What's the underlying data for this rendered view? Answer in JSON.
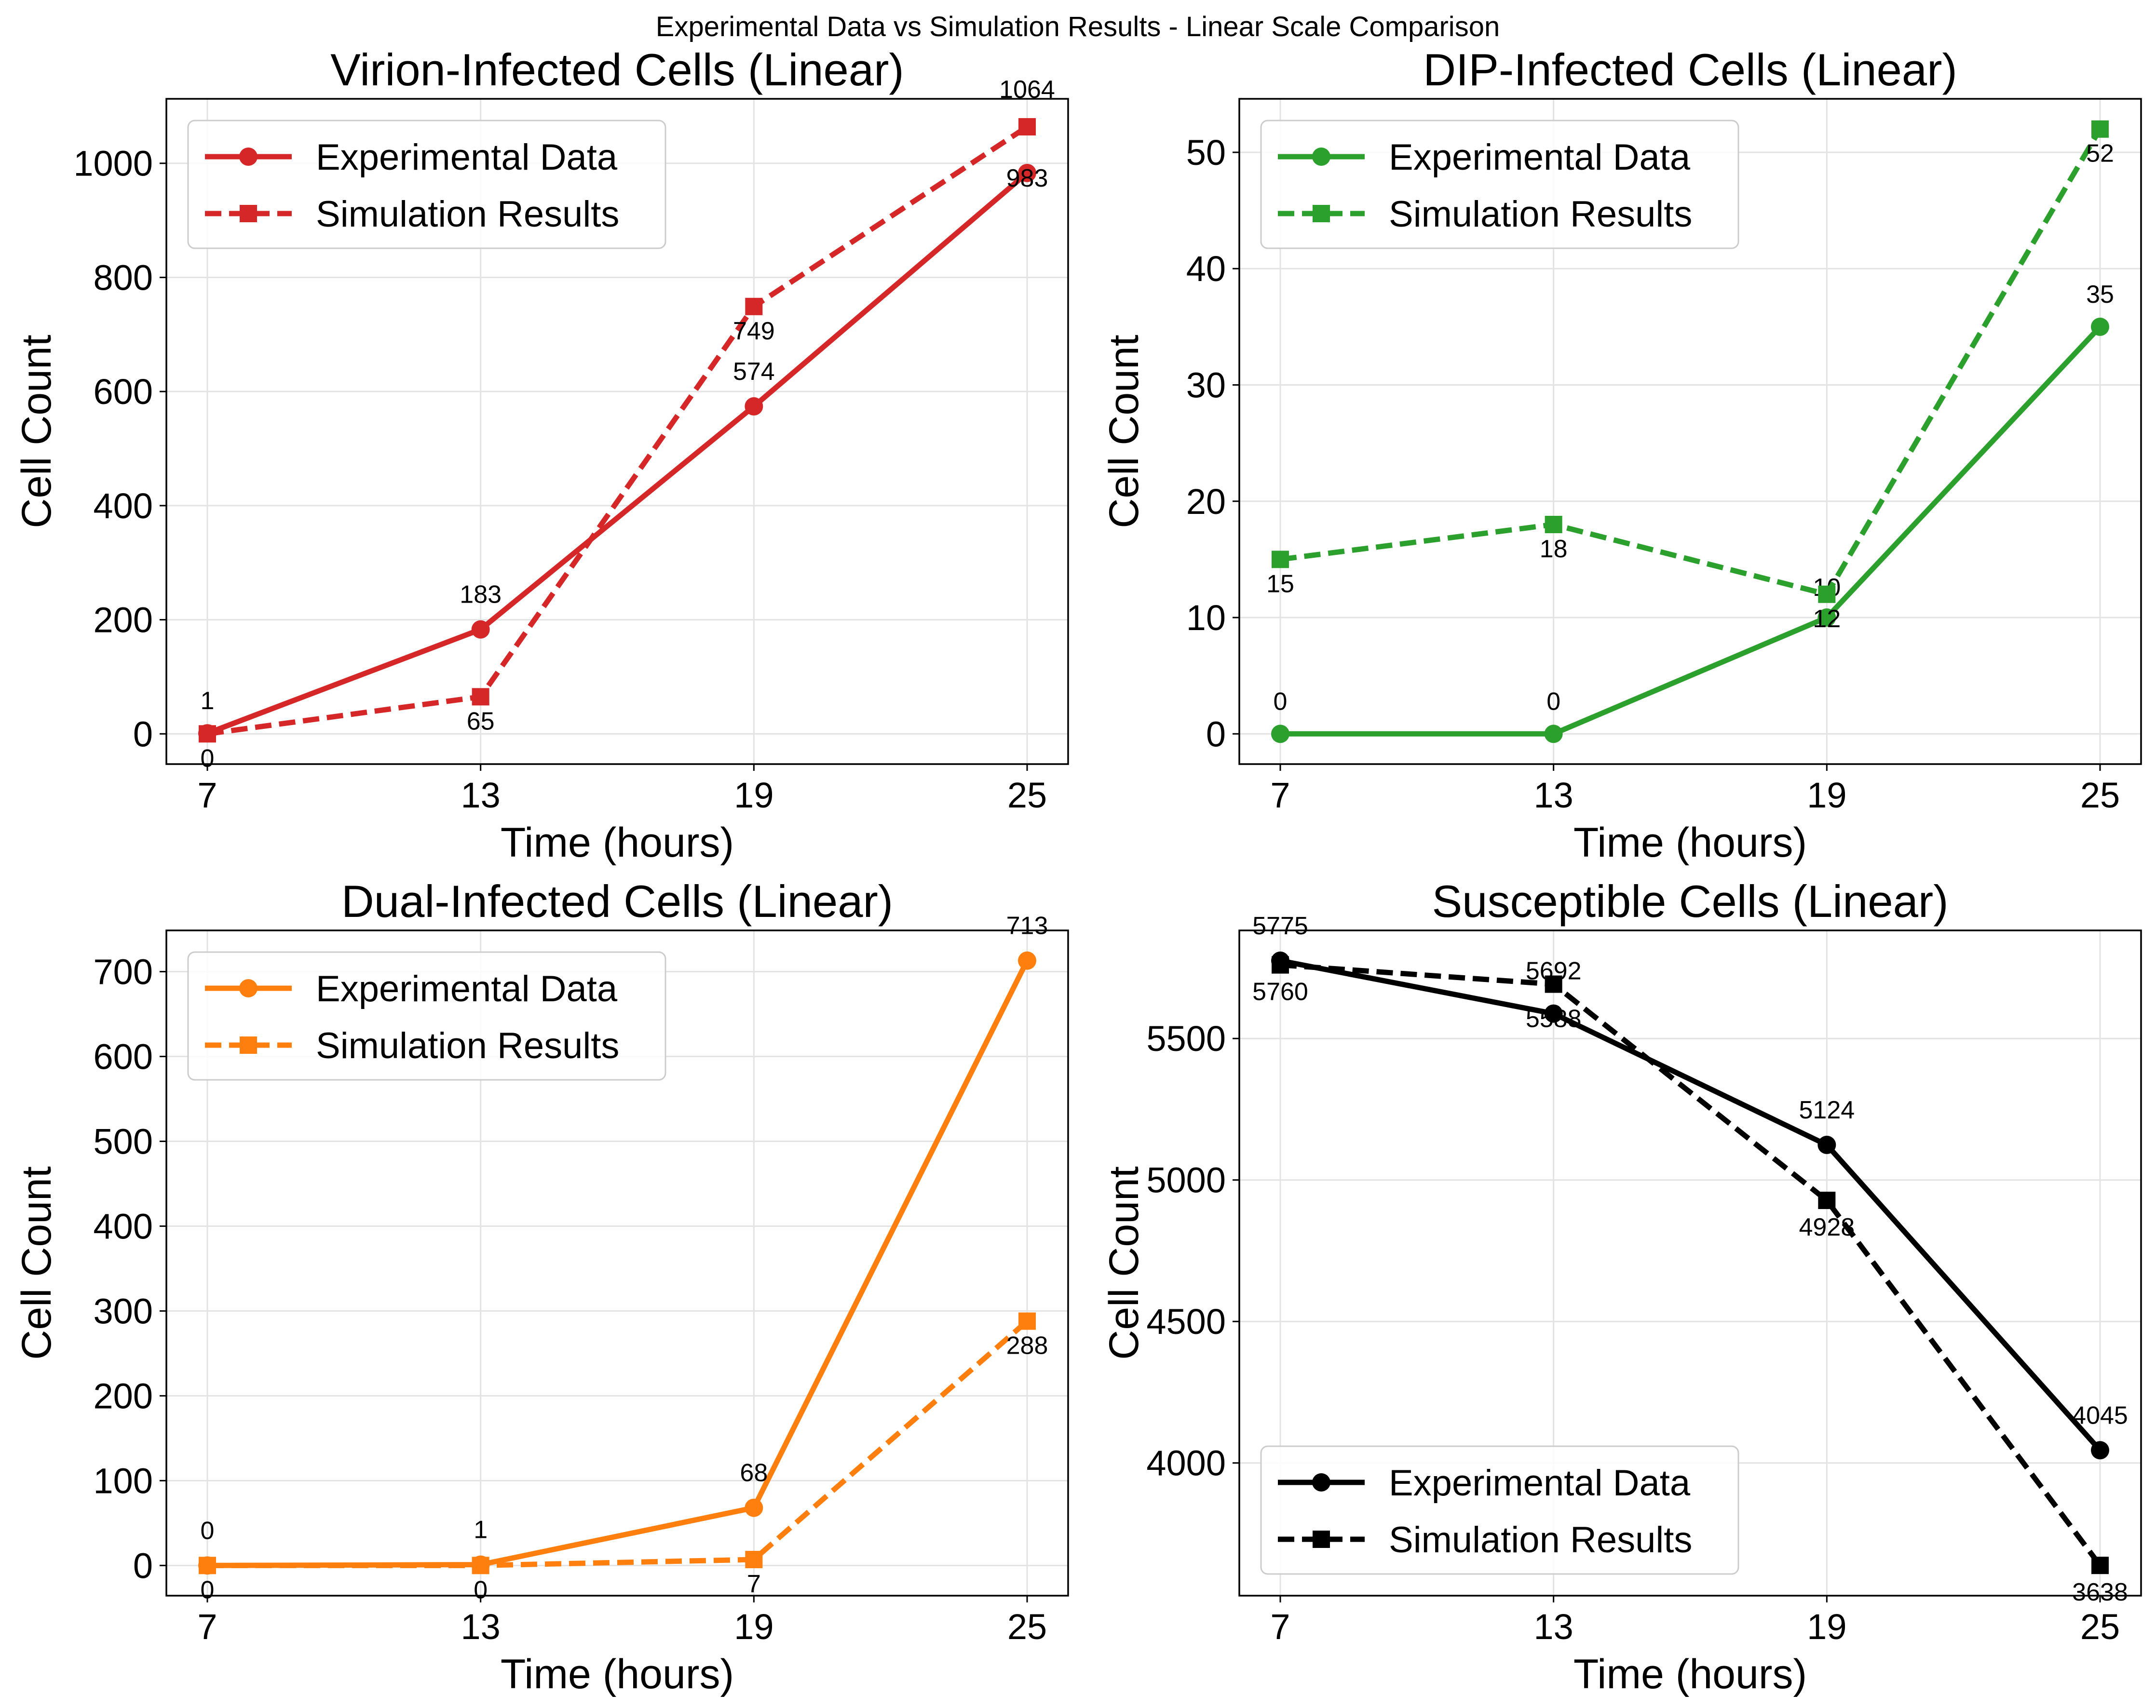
{
  "figure_title": "Experimental Data vs Simulation Results - Linear Scale Comparison",
  "chart_data": [
    {
      "type": "line",
      "title": "Virion-Infected Cells (Linear)",
      "xlabel": "Time (hours)",
      "ylabel": "Cell Count",
      "x": [
        7,
        13,
        19,
        25
      ],
      "xticks": [
        "7",
        "13",
        "19",
        "25"
      ],
      "xlim": [
        6.1,
        25.9
      ],
      "ylim": [
        -53,
        1113
      ],
      "yticks": [
        0,
        200,
        400,
        600,
        800,
        1000
      ],
      "yticklabels": [
        "0",
        "200",
        "400",
        "600",
        "800",
        "1000"
      ],
      "grid": true,
      "legend_position": "upper-left",
      "color": "#d62728",
      "series": [
        {
          "name": "Experimental Data",
          "style": "solid",
          "marker": "circle",
          "values": [
            1,
            183,
            574,
            983
          ],
          "labels": [
            "1",
            "183",
            "574",
            "983"
          ]
        },
        {
          "name": "Simulation Results",
          "style": "dashed",
          "marker": "square",
          "values": [
            0,
            65,
            749,
            1064
          ],
          "labels": [
            "0",
            "65",
            "749",
            "1064"
          ]
        }
      ]
    },
    {
      "type": "line",
      "title": "DIP-Infected Cells (Linear)",
      "xlabel": "Time (hours)",
      "ylabel": "Cell Count",
      "x": [
        7,
        13,
        19,
        25
      ],
      "xticks": [
        "7",
        "13",
        "19",
        "25"
      ],
      "xlim": [
        6.1,
        25.9
      ],
      "ylim": [
        -2.6,
        54.6
      ],
      "yticks": [
        0,
        10,
        20,
        30,
        40,
        50
      ],
      "yticklabels": [
        "0",
        "10",
        "20",
        "30",
        "40",
        "50"
      ],
      "grid": true,
      "legend_position": "upper-left",
      "color": "#2ca02c",
      "series": [
        {
          "name": "Experimental Data",
          "style": "solid",
          "marker": "circle",
          "values": [
            0,
            0,
            10,
            35
          ],
          "labels": [
            "0",
            "0",
            "10",
            "35"
          ]
        },
        {
          "name": "Simulation Results",
          "style": "dashed",
          "marker": "square",
          "values": [
            15,
            18,
            12,
            52
          ],
          "labels": [
            "15",
            "18",
            "12",
            "52"
          ]
        }
      ]
    },
    {
      "type": "line",
      "title": "Dual-Infected Cells (Linear)",
      "xlabel": "Time (hours)",
      "ylabel": "Cell Count",
      "x": [
        7,
        13,
        19,
        25
      ],
      "xticks": [
        "7",
        "13",
        "19",
        "25"
      ],
      "xlim": [
        6.1,
        25.9
      ],
      "ylim": [
        -35.6,
        748.6
      ],
      "yticks": [
        0,
        100,
        200,
        300,
        400,
        500,
        600,
        700
      ],
      "yticklabels": [
        "0",
        "100",
        "200",
        "300",
        "400",
        "500",
        "600",
        "700"
      ],
      "grid": true,
      "legend_position": "upper-left",
      "color": "#ff7f0e",
      "series": [
        {
          "name": "Experimental Data",
          "style": "solid",
          "marker": "circle",
          "values": [
            0,
            1,
            68,
            713
          ],
          "labels": [
            "0",
            "1",
            "68",
            "713"
          ]
        },
        {
          "name": "Simulation Results",
          "style": "dashed",
          "marker": "square",
          "values": [
            0,
            0,
            7,
            288
          ],
          "labels": [
            "0",
            "0",
            "7",
            "288"
          ]
        }
      ]
    },
    {
      "type": "line",
      "title": "Susceptible Cells (Linear)",
      "xlabel": "Time (hours)",
      "ylabel": "Cell Count",
      "x": [
        7,
        13,
        19,
        25
      ],
      "xticks": [
        "7",
        "13",
        "19",
        "25"
      ],
      "xlim": [
        6.1,
        25.9
      ],
      "ylim": [
        3531,
        5882
      ],
      "yticks": [
        4000,
        4500,
        5000,
        5500
      ],
      "yticklabels": [
        "4000",
        "4500",
        "5000",
        "5500"
      ],
      "grid": true,
      "legend_position": "lower-left",
      "color": "#000000",
      "series": [
        {
          "name": "Experimental Data",
          "style": "solid",
          "marker": "circle",
          "values": [
            5775,
            5588,
            5124,
            4045
          ],
          "labels": [
            "5775",
            "5588",
            "5124",
            "4045"
          ]
        },
        {
          "name": "Simulation Results",
          "style": "dashed",
          "marker": "square",
          "values": [
            5760,
            5692,
            4928,
            3638
          ],
          "labels": [
            "5760",
            "5692",
            "4928",
            "3638"
          ]
        }
      ]
    }
  ]
}
